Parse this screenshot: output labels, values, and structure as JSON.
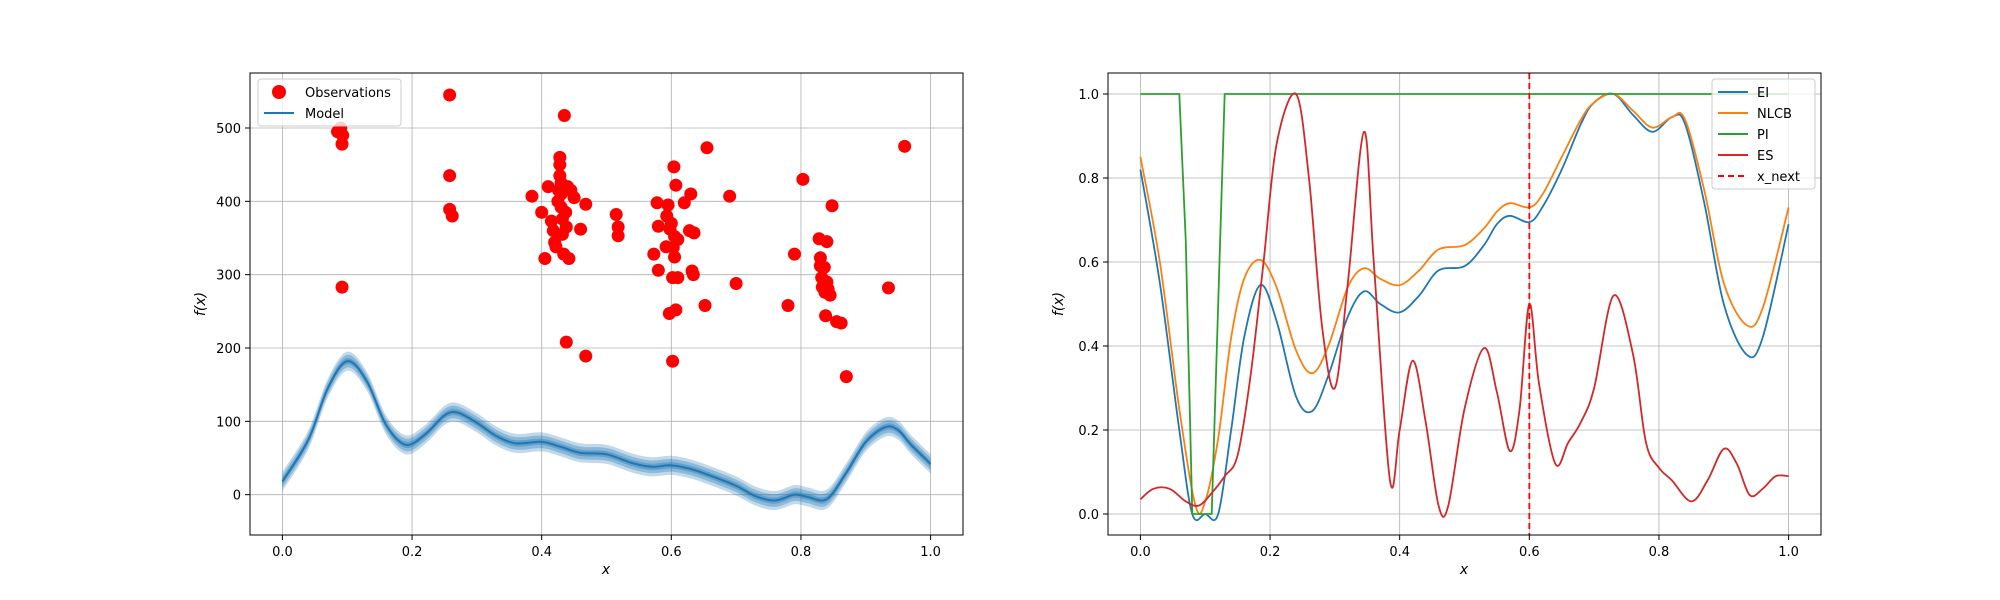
{
  "chart_data": [
    {
      "type": "scatter",
      "xlabel": "x",
      "ylabel": "f(x)",
      "xlim": [
        -0.05,
        1.05
      ],
      "ylim": [
        -55,
        575
      ],
      "xticks": [
        0.0,
        0.2,
        0.4,
        0.6,
        0.8,
        1.0
      ],
      "xtick_labels": [
        "0.0",
        "0.2",
        "0.4",
        "0.6",
        "0.8",
        "1.0"
      ],
      "yticks": [
        0,
        100,
        200,
        300,
        400,
        500
      ],
      "ytick_labels": [
        "0",
        "100",
        "200",
        "300",
        "400",
        "500"
      ],
      "grid": true,
      "legend_position": "top-left",
      "legend": [
        "Observations",
        "Model"
      ],
      "colors": {
        "observations": "#ff0000",
        "model": "#1f77b4",
        "band": "#1f77b4"
      },
      "observations": [
        [
          0.085,
          495
        ],
        [
          0.09,
          500
        ],
        [
          0.093,
          490
        ],
        [
          0.092,
          478
        ],
        [
          0.092,
          283
        ],
        [
          0.258,
          545
        ],
        [
          0.258,
          435
        ],
        [
          0.258,
          389
        ],
        [
          0.262,
          380
        ],
        [
          0.385,
          407
        ],
        [
          0.4,
          385
        ],
        [
          0.405,
          322
        ],
        [
          0.41,
          420
        ],
        [
          0.415,
          373
        ],
        [
          0.418,
          360
        ],
        [
          0.42,
          344
        ],
        [
          0.422,
          338
        ],
        [
          0.425,
          400
        ],
        [
          0.426,
          415
        ],
        [
          0.428,
          460
        ],
        [
          0.428,
          450
        ],
        [
          0.428,
          435
        ],
        [
          0.43,
          425
        ],
        [
          0.43,
          410
        ],
        [
          0.43,
          392
        ],
        [
          0.432,
          376
        ],
        [
          0.432,
          355
        ],
        [
          0.434,
          328
        ],
        [
          0.435,
          517
        ],
        [
          0.437,
          385
        ],
        [
          0.438,
          365
        ],
        [
          0.438,
          208
        ],
        [
          0.44,
          420
        ],
        [
          0.442,
          322
        ],
        [
          0.445,
          415
        ],
        [
          0.45,
          405
        ],
        [
          0.46,
          362
        ],
        [
          0.468,
          396
        ],
        [
          0.468,
          189
        ],
        [
          0.515,
          382
        ],
        [
          0.518,
          365
        ],
        [
          0.518,
          353
        ],
        [
          0.573,
          328
        ],
        [
          0.578,
          398
        ],
        [
          0.58,
          306
        ],
        [
          0.58,
          366
        ],
        [
          0.592,
          338
        ],
        [
          0.593,
          380
        ],
        [
          0.595,
          395
        ],
        [
          0.597,
          247
        ],
        [
          0.598,
          362
        ],
        [
          0.6,
          370
        ],
        [
          0.602,
          182
        ],
        [
          0.602,
          296
        ],
        [
          0.603,
          337
        ],
        [
          0.604,
          447
        ],
        [
          0.605,
          352
        ],
        [
          0.605,
          324
        ],
        [
          0.607,
          252
        ],
        [
          0.607,
          422
        ],
        [
          0.61,
          348
        ],
        [
          0.61,
          296
        ],
        [
          0.62,
          398
        ],
        [
          0.628,
          360
        ],
        [
          0.63,
          410
        ],
        [
          0.632,
          305
        ],
        [
          0.634,
          300
        ],
        [
          0.635,
          357
        ],
        [
          0.652,
          258
        ],
        [
          0.655,
          473
        ],
        [
          0.69,
          407
        ],
        [
          0.7,
          288
        ],
        [
          0.78,
          258
        ],
        [
          0.79,
          328
        ],
        [
          0.803,
          430
        ],
        [
          0.828,
          349
        ],
        [
          0.83,
          323
        ],
        [
          0.83,
          312
        ],
        [
          0.832,
          296
        ],
        [
          0.833,
          283
        ],
        [
          0.836,
          310
        ],
        [
          0.837,
          276
        ],
        [
          0.838,
          244
        ],
        [
          0.84,
          345
        ],
        [
          0.84,
          290
        ],
        [
          0.842,
          280
        ],
        [
          0.845,
          272
        ],
        [
          0.848,
          394
        ],
        [
          0.855,
          236
        ],
        [
          0.862,
          234
        ],
        [
          0.87,
          161
        ],
        [
          0.935,
          282
        ],
        [
          0.96,
          475
        ]
      ],
      "model": {
        "x": [
          0.0,
          0.04,
          0.07,
          0.1,
          0.13,
          0.16,
          0.19,
          0.22,
          0.25,
          0.27,
          0.3,
          0.33,
          0.36,
          0.4,
          0.43,
          0.46,
          0.5,
          0.54,
          0.57,
          0.6,
          0.63,
          0.66,
          0.7,
          0.73,
          0.76,
          0.79,
          0.81,
          0.84,
          0.87,
          0.9,
          0.93,
          0.95,
          0.97,
          1.0
        ],
        "y": [
          18,
          75,
          145,
          182,
          155,
          95,
          68,
          82,
          108,
          112,
          98,
          80,
          70,
          72,
          65,
          57,
          55,
          43,
          38,
          40,
          35,
          26,
          12,
          -2,
          -8,
          0,
          -3,
          -6,
          30,
          72,
          92,
          88,
          68,
          42
        ],
        "band_halfwidth": 13
      }
    },
    {
      "type": "line",
      "xlabel": "x",
      "ylabel": "f(x)",
      "xlim": [
        -0.05,
        1.05
      ],
      "ylim": [
        -0.05,
        1.05
      ],
      "xticks": [
        0.0,
        0.2,
        0.4,
        0.6,
        0.8,
        1.0
      ],
      "xtick_labels": [
        "0.0",
        "0.2",
        "0.4",
        "0.6",
        "0.8",
        "1.0"
      ],
      "yticks": [
        0.0,
        0.2,
        0.4,
        0.6,
        0.8,
        1.0
      ],
      "ytick_labels": [
        "0.0",
        "0.2",
        "0.4",
        "0.6",
        "0.8",
        "1.0"
      ],
      "grid": true,
      "legend_position": "top-right",
      "x_next": 0.6,
      "x_next_label": "x_next",
      "series": [
        {
          "name": "EI",
          "color": "#1f77b4",
          "x": [
            0.0,
            0.03,
            0.06,
            0.08,
            0.1,
            0.12,
            0.14,
            0.16,
            0.185,
            0.21,
            0.24,
            0.265,
            0.29,
            0.32,
            0.345,
            0.37,
            0.4,
            0.43,
            0.46,
            0.5,
            0.53,
            0.55,
            0.57,
            0.6,
            0.62,
            0.65,
            0.68,
            0.7,
            0.73,
            0.76,
            0.79,
            0.82,
            0.84,
            0.87,
            0.9,
            0.935,
            0.96,
            1.0
          ],
          "y": [
            0.82,
            0.55,
            0.2,
            0.0,
            0.0,
            0.0,
            0.2,
            0.42,
            0.545,
            0.46,
            0.28,
            0.245,
            0.33,
            0.47,
            0.53,
            0.5,
            0.48,
            0.52,
            0.58,
            0.59,
            0.64,
            0.69,
            0.71,
            0.695,
            0.73,
            0.82,
            0.93,
            0.98,
            1.0,
            0.95,
            0.91,
            0.945,
            0.93,
            0.74,
            0.5,
            0.38,
            0.42,
            0.69
          ]
        },
        {
          "name": "NLCB",
          "color": "#ff7f0e",
          "x": [
            0.0,
            0.03,
            0.06,
            0.085,
            0.1,
            0.12,
            0.14,
            0.16,
            0.185,
            0.21,
            0.24,
            0.265,
            0.29,
            0.32,
            0.345,
            0.37,
            0.4,
            0.43,
            0.46,
            0.5,
            0.53,
            0.55,
            0.57,
            0.6,
            0.62,
            0.65,
            0.68,
            0.7,
            0.73,
            0.76,
            0.79,
            0.82,
            0.84,
            0.87,
            0.9,
            0.935,
            0.96,
            1.0
          ],
          "y": [
            0.85,
            0.6,
            0.25,
            0.02,
            0.03,
            0.18,
            0.42,
            0.56,
            0.605,
            0.54,
            0.39,
            0.335,
            0.4,
            0.54,
            0.585,
            0.56,
            0.545,
            0.58,
            0.63,
            0.64,
            0.68,
            0.72,
            0.74,
            0.73,
            0.76,
            0.85,
            0.94,
            0.98,
            1.0,
            0.96,
            0.92,
            0.945,
            0.94,
            0.77,
            0.55,
            0.45,
            0.49,
            0.73
          ]
        },
        {
          "name": "PI",
          "color": "#2ca02c",
          "x": [
            0.0,
            0.06,
            0.07,
            0.08,
            0.11,
            0.12,
            0.13,
            0.14,
            1.0
          ],
          "y": [
            1.0,
            1.0,
            0.65,
            0.0,
            0.0,
            0.5,
            1.0,
            1.0,
            1.0
          ]
        },
        {
          "name": "ES",
          "color": "#d62728",
          "x": [
            0.0,
            0.02,
            0.045,
            0.07,
            0.09,
            0.11,
            0.13,
            0.15,
            0.17,
            0.19,
            0.21,
            0.24,
            0.26,
            0.28,
            0.3,
            0.32,
            0.345,
            0.36,
            0.385,
            0.4,
            0.42,
            0.44,
            0.46,
            0.475,
            0.5,
            0.53,
            0.55,
            0.57,
            0.585,
            0.6,
            0.615,
            0.64,
            0.66,
            0.68,
            0.7,
            0.73,
            0.76,
            0.78,
            0.8,
            0.82,
            0.85,
            0.875,
            0.9,
            0.92,
            0.94,
            0.96,
            0.98,
            1.0
          ],
          "y": [
            0.035,
            0.06,
            0.06,
            0.03,
            0.02,
            0.05,
            0.09,
            0.14,
            0.33,
            0.6,
            0.88,
            1.0,
            0.8,
            0.45,
            0.3,
            0.55,
            0.91,
            0.6,
            0.08,
            0.2,
            0.365,
            0.22,
            0.02,
            0.02,
            0.25,
            0.395,
            0.29,
            0.15,
            0.25,
            0.5,
            0.31,
            0.12,
            0.17,
            0.22,
            0.3,
            0.52,
            0.38,
            0.17,
            0.11,
            0.08,
            0.03,
            0.08,
            0.155,
            0.12,
            0.045,
            0.06,
            0.09,
            0.09
          ]
        }
      ]
    }
  ]
}
